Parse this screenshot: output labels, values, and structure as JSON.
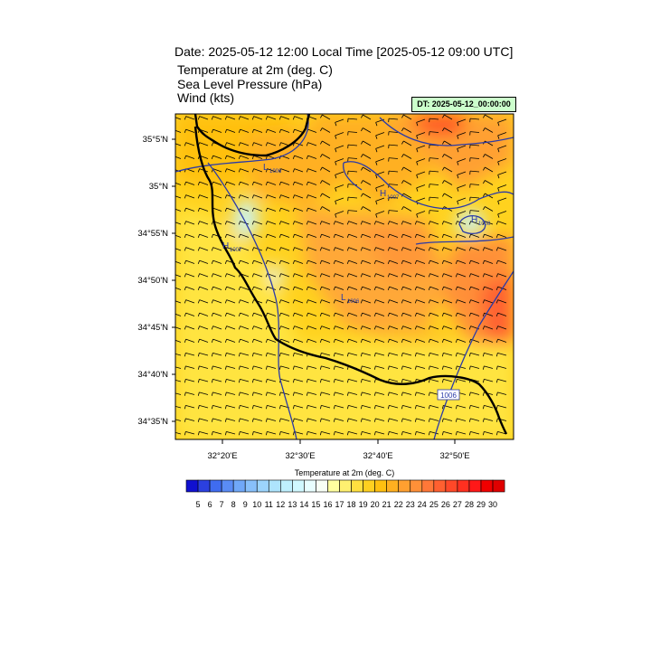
{
  "header": {
    "title": "Date: 2025-05-12  12:00 Local Time [2025-05-12  09:00 UTC]",
    "fields": [
      "Temperature at 2m   (deg. C)",
      "Sea Level Pressure   (hPa)",
      "Wind   (kts)"
    ],
    "dt_label": "DT: 2025-05-12_00:00:00"
  },
  "map": {
    "lat_ticks": [
      "35°5'N",
      "35°N",
      "34°55'N",
      "34°50'N",
      "34°45'N",
      "34°40'N",
      "34°35'N"
    ],
    "lon_ticks": [
      "32°20'E",
      "32°30'E",
      "32°40'E",
      "32°50'E"
    ],
    "pressure_labels": [
      {
        "letter": "L",
        "value": "1006"
      },
      {
        "letter": "H",
        "value": "1007"
      },
      {
        "letter": "H",
        "value": "1008"
      },
      {
        "letter": "H",
        "value": "1007"
      },
      {
        "letter": "L",
        "value": "1006"
      }
    ],
    "contour_box_label": "1006"
  },
  "colorbar": {
    "title": "Temperature at 2m  (deg. C)",
    "labels": [
      "5",
      "6",
      "7",
      "8",
      "9",
      "10",
      "11",
      "12",
      "13",
      "14",
      "15",
      "16",
      "17",
      "18",
      "19",
      "20",
      "21",
      "22",
      "23",
      "24",
      "25",
      "26",
      "27",
      "28",
      "29",
      "30"
    ],
    "colors": [
      "#1010d0",
      "#2b40e0",
      "#3f6cf0",
      "#5a8cf5",
      "#70a8f8",
      "#88c0fa",
      "#9cd4fc",
      "#aee4fd",
      "#bff0fe",
      "#d0f8ff",
      "#e8feff",
      "#f8fff6",
      "#ffffa0",
      "#fff070",
      "#ffe040",
      "#ffd020",
      "#ffc010",
      "#ffb020",
      "#ffa030",
      "#ff9038",
      "#ff7838",
      "#ff6030",
      "#ff4828",
      "#ff3020",
      "#ff1818",
      "#f00000",
      "#e00000"
    ]
  }
}
